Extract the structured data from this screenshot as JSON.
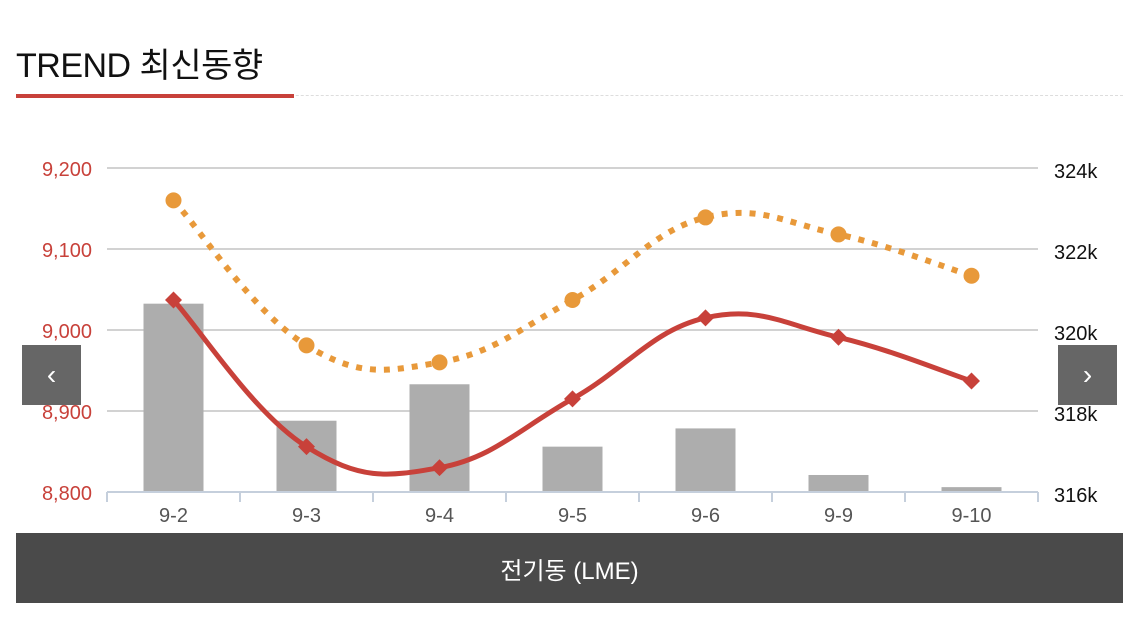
{
  "header": {
    "title": "TREND 최신동향"
  },
  "footer": {
    "label": "전기동 (LME)"
  },
  "nav": {
    "prev_icon": "chevron-left-icon",
    "next_icon": "chevron-right-icon",
    "prev_glyph": "‹",
    "next_glyph": "›"
  },
  "chart_data": {
    "type": "bar+line",
    "categories": [
      "9-2",
      "9-3",
      "9-4",
      "9-5",
      "9-6",
      "9-9",
      "9-10"
    ],
    "left_axis": {
      "ylim": [
        8800,
        9200
      ],
      "ticks": [
        "8,800",
        "8,900",
        "9,000",
        "9,100",
        "9,200"
      ],
      "tick_values": [
        8800,
        8900,
        9000,
        9100,
        9200
      ],
      "color": "#c8413a"
    },
    "right_axis": {
      "ylim": [
        316000,
        324000
      ],
      "ticks": [
        "316k",
        "318k",
        "320k",
        "322k",
        "324k"
      ],
      "tick_values": [
        316000,
        318000,
        320000,
        322000,
        324000
      ]
    },
    "grid": true,
    "series": [
      {
        "type": "bar",
        "axis": "right",
        "color": "#adadad",
        "values": [
          320650,
          317760,
          318660,
          317120,
          317570,
          316420,
          316120
        ]
      },
      {
        "type": "line",
        "axis": "left",
        "style": "solid",
        "marker": "diamond",
        "color": "#c8413a",
        "values": [
          9037,
          8856,
          8830,
          8915,
          9015,
          8991,
          8937
        ]
      },
      {
        "type": "line",
        "axis": "left",
        "style": "dotted",
        "marker": "circle",
        "color": "#e8993a",
        "values": [
          9160,
          8981,
          8960,
          9037,
          9139,
          9118,
          9067
        ]
      }
    ]
  }
}
